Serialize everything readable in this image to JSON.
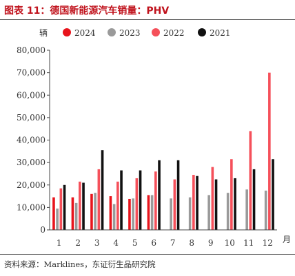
{
  "page_title": "图表 11：德国新能源汽车销量：PHV",
  "source_note": "资料来源：Marklines，东证衍生品研究院",
  "chart_data": {
    "type": "bar",
    "title": "图表 11：德国新能源汽车销量：PHV",
    "ylabel": "辆",
    "xlabel": "月",
    "categories": [
      "1",
      "2",
      "3",
      "4",
      "5",
      "6",
      "7",
      "8",
      "9",
      "10",
      "11",
      "12"
    ],
    "ylim": [
      0,
      80000
    ],
    "y_ticks": [
      0,
      10000,
      20000,
      30000,
      40000,
      50000,
      60000,
      70000,
      80000
    ],
    "y_tick_labels": [
      "0",
      "10,000",
      "20,000",
      "30,000",
      "40,000",
      "50,000",
      "60,000",
      "70,000",
      "80,000"
    ],
    "legend_placement": "top",
    "series": [
      {
        "name": "2024",
        "color": "#e8141c",
        "values": [
          14500,
          14500,
          16000,
          15000,
          13800,
          15500,
          null,
          null,
          null,
          null,
          null,
          null
        ]
      },
      {
        "name": "2023",
        "color": "#9a9a9a",
        "values": [
          9500,
          12000,
          16500,
          11500,
          14000,
          15500,
          14000,
          14500,
          15500,
          16500,
          18000,
          17500
        ]
      },
      {
        "name": "2022",
        "color": "#f5505a",
        "values": [
          18500,
          21500,
          27000,
          21500,
          23000,
          26000,
          22500,
          24500,
          28000,
          31500,
          44000,
          70000
        ]
      },
      {
        "name": "2021",
        "color": "#111111",
        "values": [
          20000,
          21000,
          35500,
          26500,
          26500,
          31000,
          31000,
          24000,
          22500,
          23000,
          27000,
          31500
        ]
      }
    ]
  }
}
